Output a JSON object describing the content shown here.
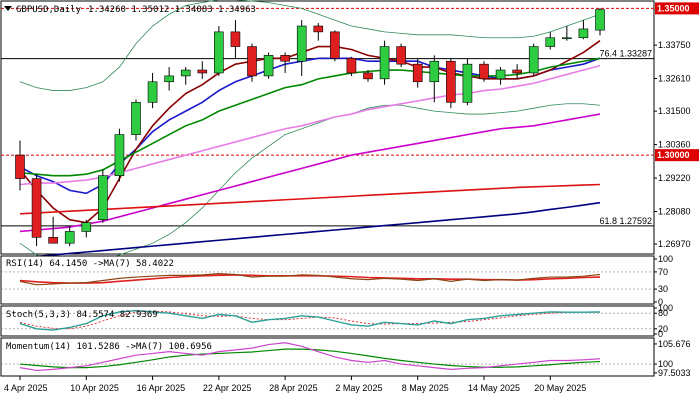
{
  "chart_data": {
    "type": "candlestick",
    "symbol": "GBPUSD",
    "timeframe": "Daily",
    "header": {
      "symbol_label": "GBPUSD,Daily",
      "ohlc": "1.34260 1.35012 1.34083 1.34963"
    },
    "price_axis": {
      "ticks": [
        "1.33750",
        "1.32610",
        "1.31500",
        "1.30360",
        "1.29220",
        "1.28080",
        "1.26970"
      ],
      "ylim": [
        1.267,
        1.3515
      ]
    },
    "x_axis_labels": [
      {
        "label": "4 Apr 2025",
        "i": 0
      },
      {
        "label": "10 Apr 2025",
        "i": 4
      },
      {
        "label": "16 Apr 2025",
        "i": 8
      },
      {
        "label": "22 Apr 2025",
        "i": 12
      },
      {
        "label": "28 Apr 2025",
        "i": 16
      },
      {
        "label": "2 May 2025",
        "i": 20
      },
      {
        "label": "8 May 2025",
        "i": 24
      },
      {
        "label": "14 May 2025",
        "i": 28
      },
      {
        "label": "20 May 2025",
        "i": 32
      }
    ],
    "candles": [
      [
        1.3,
        1.305,
        1.288,
        1.292
      ],
      [
        1.292,
        1.2935,
        1.269,
        1.272
      ],
      [
        1.272,
        1.279,
        1.27,
        1.27
      ],
      [
        1.27,
        1.276,
        1.269,
        1.274
      ],
      [
        1.274,
        1.278,
        1.272,
        1.277
      ],
      [
        1.278,
        1.295,
        1.277,
        1.293
      ],
      [
        1.293,
        1.309,
        1.291,
        1.307
      ],
      [
        1.307,
        1.319,
        1.305,
        1.318
      ],
      [
        1.318,
        1.328,
        1.316,
        1.325
      ],
      [
        1.325,
        1.33,
        1.322,
        1.327
      ],
      [
        1.327,
        1.33,
        1.324,
        1.329
      ],
      [
        1.329,
        1.332,
        1.326,
        1.328
      ],
      [
        1.328,
        1.344,
        1.327,
        1.342
      ],
      [
        1.342,
        1.346,
        1.333,
        1.337
      ],
      [
        1.337,
        1.338,
        1.325,
        1.327
      ],
      [
        1.327,
        1.335,
        1.326,
        1.334
      ],
      [
        1.334,
        1.335,
        1.328,
        1.332
      ],
      [
        1.332,
        1.346,
        1.327,
        1.344
      ],
      [
        1.344,
        1.345,
        1.339,
        1.342
      ],
      [
        1.342,
        1.3425,
        1.332,
        1.333
      ],
      [
        1.333,
        1.3335,
        1.327,
        1.328
      ],
      [
        1.328,
        1.329,
        1.325,
        1.326
      ],
      [
        1.326,
        1.339,
        1.324,
        1.337
      ],
      [
        1.337,
        1.338,
        1.33,
        1.331
      ],
      [
        1.331,
        1.333,
        1.323,
        1.325
      ],
      [
        1.325,
        1.334,
        1.318,
        1.332
      ],
      [
        1.332,
        1.333,
        1.316,
        1.318
      ],
      [
        1.318,
        1.333,
        1.317,
        1.331
      ],
      [
        1.331,
        1.332,
        1.325,
        1.326
      ],
      [
        1.326,
        1.33,
        1.324,
        1.329
      ],
      [
        1.329,
        1.331,
        1.326,
        1.328
      ],
      [
        1.328,
        1.338,
        1.327,
        1.337
      ],
      [
        1.337,
        1.342,
        1.336,
        1.34
      ],
      [
        1.34,
        1.344,
        1.339,
        1.34
      ],
      [
        1.34,
        1.346,
        1.3395,
        1.343
      ],
      [
        1.3426,
        1.3501,
        1.3408,
        1.3496
      ]
    ],
    "moving_averages": [
      {
        "color": "#1a1acc",
        "values": [
          1.296,
          1.293,
          1.291,
          1.288,
          1.287,
          1.29,
          1.297,
          1.302,
          1.308,
          1.312,
          1.315,
          1.318,
          1.322,
          1.325,
          1.327,
          1.329,
          1.331,
          1.332,
          1.333,
          1.333,
          1.333,
          1.332,
          1.332,
          1.332,
          1.332,
          1.33,
          1.329,
          1.328,
          1.327,
          1.326,
          1.326,
          1.327,
          1.329,
          1.33,
          1.331,
          1.333
        ]
      },
      {
        "color": "#8b0000",
        "values": [
          1.295,
          1.288,
          1.282,
          1.278,
          1.277,
          1.282,
          1.292,
          1.302,
          1.31,
          1.316,
          1.321,
          1.324,
          1.328,
          1.331,
          1.332,
          1.333,
          1.333,
          1.335,
          1.337,
          1.337,
          1.336,
          1.334,
          1.333,
          1.332,
          1.33,
          1.33,
          1.328,
          1.327,
          1.326,
          1.326,
          1.326,
          1.327,
          1.329,
          1.332,
          1.335,
          1.339
        ]
      },
      {
        "color": "#008800",
        "values": [
          1.294,
          1.2935,
          1.293,
          1.293,
          1.2935,
          1.295,
          1.298,
          1.301,
          1.304,
          1.307,
          1.31,
          1.312,
          1.315,
          1.317,
          1.319,
          1.321,
          1.323,
          1.324,
          1.326,
          1.327,
          1.328,
          1.3285,
          1.329,
          1.329,
          1.3285,
          1.328,
          1.3275,
          1.327,
          1.327,
          1.327,
          1.3275,
          1.3285,
          1.33,
          1.331,
          1.332,
          1.333
        ]
      },
      {
        "color": "#e87de8",
        "values": [
          1.29,
          1.2905,
          1.2905,
          1.291,
          1.2915,
          1.2925,
          1.294,
          1.2955,
          1.297,
          1.2985,
          1.3,
          1.3015,
          1.303,
          1.3045,
          1.306,
          1.3075,
          1.309,
          1.31,
          1.3115,
          1.313,
          1.314,
          1.3155,
          1.3165,
          1.3175,
          1.3185,
          1.3195,
          1.3205,
          1.321,
          1.322,
          1.3225,
          1.3235,
          1.3245,
          1.326,
          1.3275,
          1.329,
          1.3305
        ]
      },
      {
        "color": "#cc00cc",
        "values": [
          1.274,
          1.2745,
          1.275,
          1.2755,
          1.2765,
          1.2775,
          1.279,
          1.2805,
          1.282,
          1.2835,
          1.285,
          1.2865,
          1.288,
          1.2895,
          1.291,
          1.2925,
          1.294,
          1.2955,
          1.297,
          1.2985,
          1.3,
          1.301,
          1.302,
          1.303,
          1.304,
          1.305,
          1.306,
          1.307,
          1.308,
          1.309,
          1.3095,
          1.31,
          1.311,
          1.312,
          1.313,
          1.314
        ]
      },
      {
        "color": "#dd1111",
        "values": [
          1.28,
          1.2803,
          1.2806,
          1.2809,
          1.2812,
          1.2815,
          1.2818,
          1.2821,
          1.2824,
          1.2827,
          1.283,
          1.2833,
          1.2836,
          1.2839,
          1.2842,
          1.2845,
          1.2848,
          1.2851,
          1.2854,
          1.2857,
          1.286,
          1.2863,
          1.2866,
          1.2869,
          1.2872,
          1.2875,
          1.2878,
          1.2881,
          1.2884,
          1.2887,
          1.289,
          1.2892,
          1.2894,
          1.2896,
          1.2898,
          1.29
        ]
      },
      {
        "color": "#000080",
        "values": [
          1.265,
          1.2655,
          1.266,
          1.2665,
          1.267,
          1.2675,
          1.268,
          1.2685,
          1.269,
          1.2695,
          1.27,
          1.2705,
          1.271,
          1.2715,
          1.272,
          1.2725,
          1.273,
          1.2735,
          1.274,
          1.2745,
          1.275,
          1.2755,
          1.276,
          1.2765,
          1.277,
          1.2775,
          1.278,
          1.2785,
          1.279,
          1.2795,
          1.28,
          1.2807,
          1.2815,
          1.2822,
          1.283,
          1.2838
        ]
      }
    ],
    "bollinger": {
      "color": "#2e8b57",
      "upper": [
        1.325,
        1.323,
        1.322,
        1.322,
        1.323,
        1.325,
        1.33,
        1.338,
        1.344,
        1.348,
        1.351,
        1.352,
        1.353,
        1.353,
        1.3525,
        1.352,
        1.351,
        1.35,
        1.348,
        1.346,
        1.344,
        1.343,
        1.342,
        1.3415,
        1.341,
        1.341,
        1.341,
        1.3405,
        1.34,
        1.34,
        1.34,
        1.3405,
        1.342,
        1.344,
        1.346,
        1.348
      ],
      "lower": [
        1.27,
        1.266,
        1.264,
        1.262,
        1.262,
        1.264,
        1.266,
        1.268,
        1.27,
        1.273,
        1.277,
        1.282,
        1.288,
        1.294,
        1.299,
        1.303,
        1.307,
        1.309,
        1.311,
        1.313,
        1.314,
        1.316,
        1.317,
        1.317,
        1.316,
        1.315,
        1.3145,
        1.314,
        1.314,
        1.3145,
        1.315,
        1.316,
        1.317,
        1.3175,
        1.3175,
        1.317
      ]
    },
    "price_tags": [
      {
        "label": "1.35000",
        "value": 1.35,
        "color": "#dd0000"
      },
      {
        "label": "1.30000",
        "value": 1.3,
        "color": "#dd0000"
      }
    ],
    "fib_levels": [
      {
        "label": "76.4 1.33287",
        "value": 1.33287
      },
      {
        "label": "61.8 1.27592",
        "value": 1.27592
      }
    ],
    "rsi": {
      "title": "RSI(14) 64.1450  ->MA(7) 58.4022",
      "ticks": [
        "100",
        "70",
        "30",
        "0"
      ],
      "values": [
        48,
        40,
        42,
        44,
        45,
        50,
        55,
        58,
        60,
        62,
        62,
        63,
        66,
        64,
        58,
        60,
        60,
        63,
        62,
        58,
        54,
        52,
        55,
        53,
        50,
        54,
        48,
        53,
        50,
        52,
        51,
        55,
        58,
        58,
        60,
        64
      ],
      "ma": [
        50,
        47,
        45,
        44,
        44,
        45,
        48,
        51,
        54,
        57,
        59,
        61,
        62,
        63,
        62,
        61,
        61,
        61,
        61,
        60,
        59,
        57,
        56,
        55,
        54,
        54,
        53,
        53,
        52,
        52,
        51,
        52,
        54,
        55,
        57,
        58
      ]
    },
    "stoch": {
      "title": "Stoch(5,3,3) 84.5574 82.9369",
      "ticks": [
        "100",
        "80",
        "20",
        "0"
      ],
      "k": [
        40,
        20,
        15,
        25,
        40,
        70,
        85,
        90,
        85,
        80,
        70,
        60,
        75,
        70,
        45,
        55,
        60,
        70,
        65,
        50,
        35,
        30,
        45,
        40,
        35,
        50,
        40,
        55,
        60,
        70,
        75,
        80,
        85,
        84,
        84,
        85
      ],
      "d": [
        45,
        30,
        22,
        20,
        30,
        50,
        70,
        85,
        88,
        85,
        78,
        70,
        68,
        70,
        60,
        55,
        55,
        60,
        65,
        62,
        50,
        40,
        38,
        40,
        40,
        42,
        45,
        48,
        55,
        62,
        70,
        75,
        80,
        83,
        84,
        83
      ]
    },
    "momentum": {
      "title": "Momentum(14) 101.5286  ->MA(7) 100.6956",
      "ticks": [
        "105.676",
        "100",
        "97.5033"
      ],
      "values": [
        99.0,
        98.2,
        98.5,
        99.0,
        99.5,
        100.5,
        101.5,
        102.5,
        103.0,
        103.5,
        103.0,
        102.5,
        103.5,
        104.0,
        104.5,
        105.5,
        106.0,
        105.0,
        103.5,
        102.0,
        101.0,
        100.5,
        101.0,
        100.0,
        99.5,
        99.0,
        98.5,
        98.8,
        99.0,
        99.5,
        100.0,
        100.5,
        101.0,
        101.0,
        101.2,
        101.5
      ],
      "ma": [
        100.0,
        99.6,
        99.2,
        99.0,
        99.0,
        99.3,
        99.8,
        100.5,
        101.2,
        102.0,
        102.5,
        102.8,
        103.0,
        103.2,
        103.4,
        103.8,
        104.2,
        104.2,
        104.0,
        103.6,
        103.0,
        102.3,
        101.6,
        101.0,
        100.5,
        100.0,
        99.6,
        99.3,
        99.1,
        99.1,
        99.2,
        99.5,
        99.8,
        100.2,
        100.5,
        100.7
      ]
    }
  },
  "theme": {
    "up_color": "#2ecc40",
    "down_color": "#e02020",
    "ma_blue": "#1a1acc"
  }
}
